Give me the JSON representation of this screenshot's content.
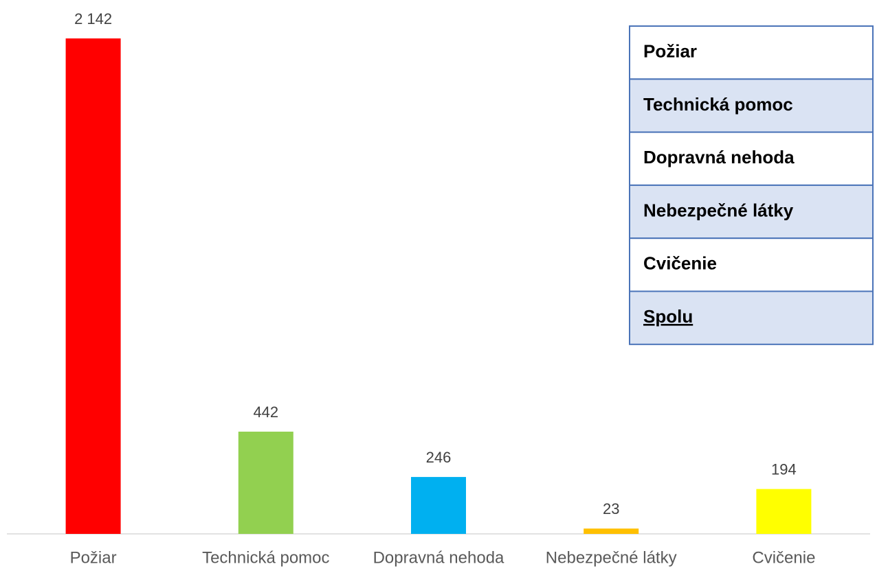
{
  "chart_data": {
    "type": "bar",
    "categories": [
      "Požiar",
      "Technická pomoc",
      "Dopravná nehoda",
      "Nebezpečné látky",
      "Cvičenie"
    ],
    "values": [
      2142,
      442,
      246,
      23,
      194
    ],
    "value_labels": [
      "2 142",
      "442",
      "246",
      "23",
      "194"
    ],
    "colors": [
      "#ff0000",
      "#92d050",
      "#00b0f0",
      "#ffc000",
      "#ffff00"
    ]
  },
  "table": {
    "rows": [
      "Požiar",
      "Technická pomoc",
      "Dopravná nehoda",
      "Nebezpečné látky",
      "Cvičenie",
      "Spolu"
    ]
  }
}
